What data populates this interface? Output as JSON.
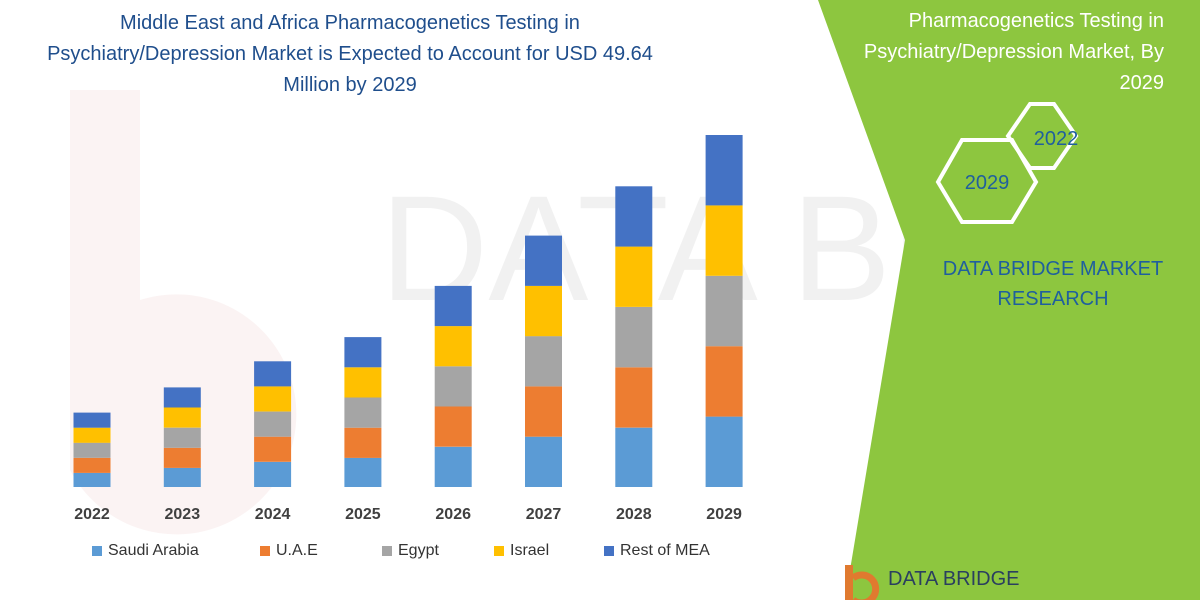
{
  "title": "Middle East and Africa Pharmacogenetics Testing in Psychiatry/Depression Market is Expected to Account for USD 49.64 Million by 2029",
  "side_panel": {
    "title": "Pharmacogenetics Testing in Psychiatry/Depression Market, By 2029",
    "hex_top": "2022",
    "hex_bottom": "2029",
    "brand": "DATA BRIDGE MARKET RESEARCH",
    "logo_text": "DATA BRIDGE",
    "bg_color": "#8dc63f"
  },
  "watermark": "DATA BRIDGE",
  "chart_data": {
    "type": "bar",
    "stacked": true,
    "categories": [
      "2022",
      "2023",
      "2024",
      "2025",
      "2026",
      "2027",
      "2028",
      "2029"
    ],
    "series": [
      {
        "name": "Saudi Arabia",
        "color": "#5b9bd5",
        "values": [
          14,
          19,
          25,
          29,
          40,
          50,
          59,
          70
        ]
      },
      {
        "name": "U.A.E",
        "color": "#ed7d31",
        "values": [
          15,
          20,
          25,
          30,
          40,
          50,
          60,
          70
        ]
      },
      {
        "name": "Egypt",
        "color": "#a5a5a5",
        "values": [
          15,
          20,
          25,
          30,
          40,
          50,
          60,
          70
        ]
      },
      {
        "name": "Israel",
        "color": "#ffc000",
        "values": [
          15,
          20,
          25,
          30,
          40,
          50,
          60,
          70
        ]
      },
      {
        "name": "Rest of MEA",
        "color": "#4472c4",
        "values": [
          15,
          20,
          25,
          30,
          40,
          50,
          60,
          70
        ]
      }
    ],
    "legend_position": "bottom",
    "grid": false
  }
}
